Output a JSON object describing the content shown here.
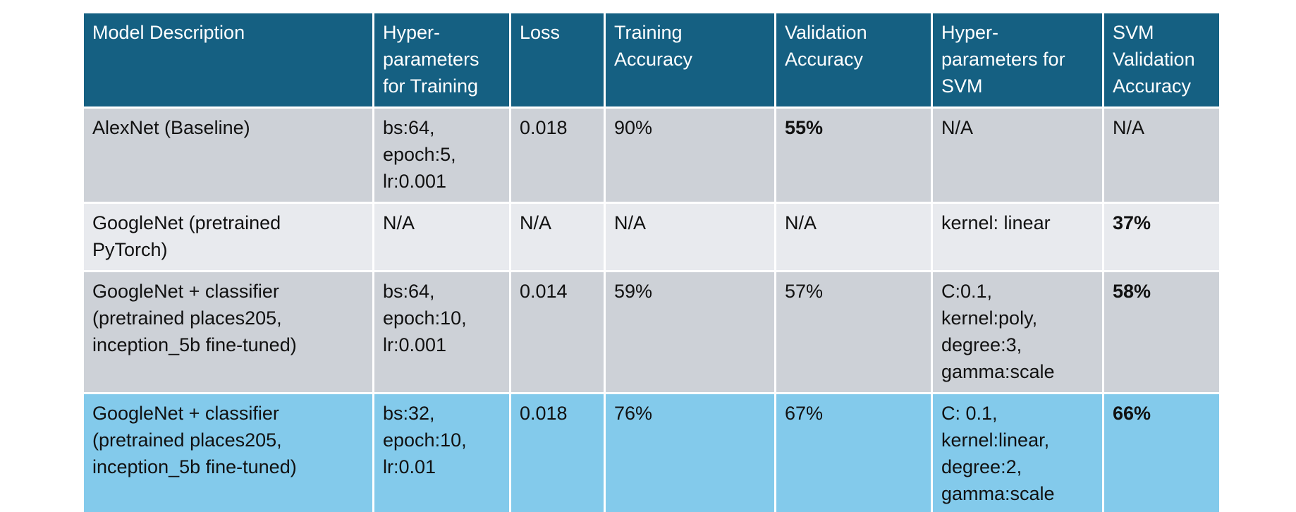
{
  "table": {
    "columns": [
      "Model Description",
      "Hyper-parameters for Training",
      "Loss",
      "Training Accuracy",
      "Validation Accuracy",
      "Hyper-parameters for SVM",
      "SVM Validation Accuracy"
    ],
    "header_lines": [
      [
        "Model Description"
      ],
      [
        "Hyper-",
        "parameters",
        "for Training"
      ],
      [
        "Loss"
      ],
      [
        "Training",
        "Accuracy"
      ],
      [
        "Validation",
        "Accuracy"
      ],
      [
        "Hyper-",
        "parameters for",
        "SVM"
      ],
      [
        "SVM",
        "Validation",
        "Accuracy"
      ]
    ],
    "rows": [
      {
        "model": [
          "AlexNet (Baseline)"
        ],
        "train_hparams": [
          "bs:64,",
          "epoch:5,",
          "lr:0.001"
        ],
        "loss": "0.018",
        "train_acc": "90%",
        "val_acc": "55%",
        "svm_hparams": [
          "N/A"
        ],
        "svm_val_acc": "N/A"
      },
      {
        "model": [
          "GoogleNet (pretrained",
          "PyTorch)"
        ],
        "train_hparams": [
          "N/A"
        ],
        "loss": "N/A",
        "train_acc": "N/A",
        "val_acc": "N/A",
        "svm_hparams": [
          "kernel: linear"
        ],
        "svm_val_acc": "37%"
      },
      {
        "model": [
          "GoogleNet + classifier",
          "(pretrained places205,",
          "inception_5b fine-tuned)"
        ],
        "train_hparams": [
          "bs:64,",
          "epoch:10,",
          "lr:0.001"
        ],
        "loss": "0.014",
        "train_acc": "59%",
        "val_acc": "57%",
        "svm_hparams": [
          "C:0.1,",
          "kernel:poly,",
          "degree:3,",
          "gamma:scale"
        ],
        "svm_val_acc": "58%"
      },
      {
        "model": [
          "GoogleNet + classifier",
          "(pretrained places205,",
          "inception_5b fine-tuned)"
        ],
        "train_hparams": [
          "bs:32,",
          "epoch:10,",
          "lr:0.01"
        ],
        "loss": "0.018",
        "train_acc": "76%",
        "val_acc": "67%",
        "svm_hparams": [
          "C: 0.1,",
          "kernel:linear,",
          "degree:2,",
          "gamma:scale"
        ],
        "svm_val_acc": "66%"
      }
    ]
  },
  "colors": {
    "header_bg": "#156082",
    "row_dark": "#cdd1d7",
    "row_light": "#e8eaee",
    "row_highlight": "#83caeb"
  }
}
